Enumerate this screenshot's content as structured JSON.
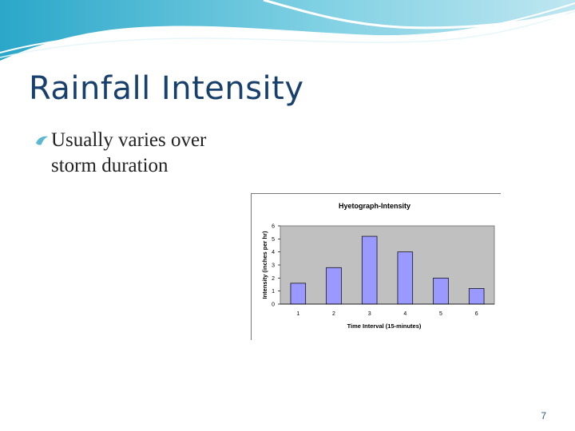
{
  "slide": {
    "title": "Rainfall Intensity",
    "bullet": {
      "line1": "Usually varies over",
      "line2": "storm duration"
    },
    "page_number": "7"
  },
  "colors": {
    "title": "#17406d",
    "bar_fill": "#9999ff",
    "plot_bg": "#c0c0c0",
    "wave_dark": "#2aa7c9",
    "wave_light": "#bfe7f1"
  },
  "icons": {
    "bullet": "water-drop-bullet-icon"
  },
  "chart_data": {
    "type": "bar",
    "title": "Hyetograph-Intensity",
    "xlabel": "Time Interval (15-minutes)",
    "ylabel": "Intensity (inches per hr)",
    "categories": [
      "1",
      "2",
      "3",
      "4",
      "5",
      "6"
    ],
    "values": [
      1.6,
      2.8,
      5.2,
      4.0,
      2.0,
      1.2
    ],
    "ylim": [
      0,
      6
    ],
    "yticks": [
      "0",
      "1",
      "2",
      "3",
      "4",
      "5",
      "6"
    ],
    "grid": false,
    "legend": "none"
  }
}
